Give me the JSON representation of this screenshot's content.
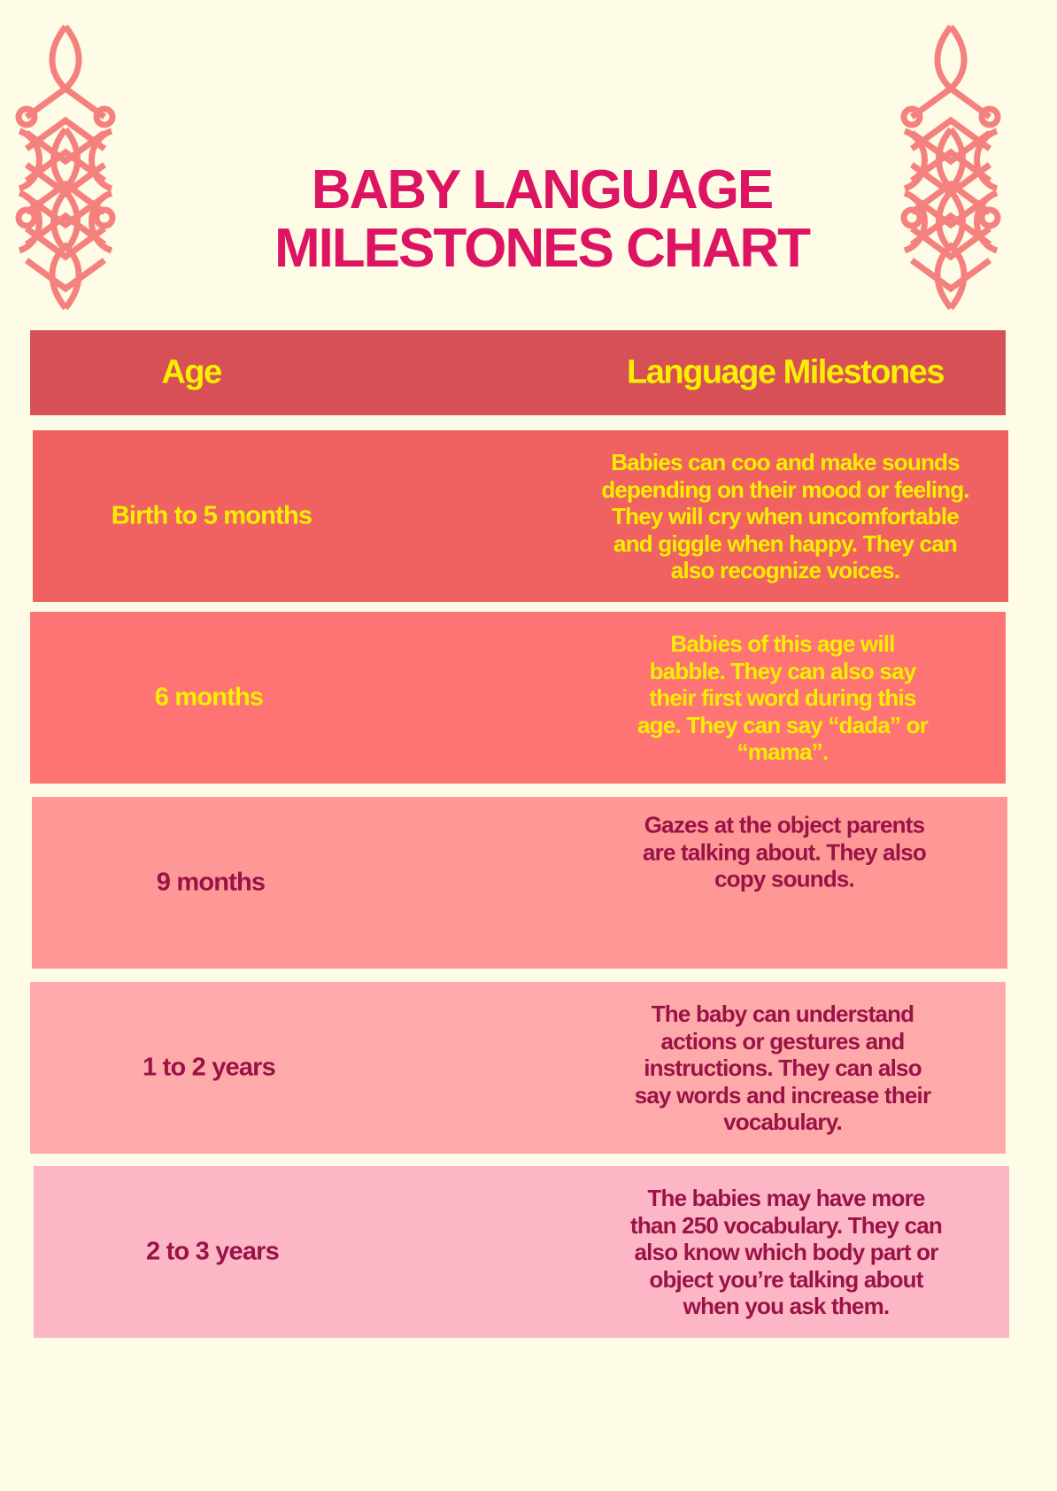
{
  "title": {
    "line1": "BABY LANGUAGE",
    "line2": "MILESTONES CHART"
  },
  "colors": {
    "title": "#dc1462",
    "header_bg": "#d75055",
    "header_text": "#f8f000",
    "ornament": "#f5817e"
  },
  "ornament_icon": "celtic-knot",
  "table": {
    "headers": {
      "age": "Age",
      "milestones": "Language Milestones"
    },
    "rows": [
      {
        "age": "Birth to 5 months",
        "milestone": "Babies can coo and make sounds depending on their mood or feeling. They will cry when uncomfortable and giggle when happy. They can also recognize voices.",
        "bg": "#f06262",
        "text_color": "#f8ef00"
      },
      {
        "age": "6 months",
        "milestone": "Babies of this age will babble. They can also say their first word during this age. They can say “dada” or “mama”.",
        "bg": "#fe7475",
        "text_color": "#f8ef00"
      },
      {
        "age": "9 months",
        "milestone": "Gazes at the object parents are talking about. They also copy sounds.",
        "bg": "#fe9896",
        "text_color": "#9a1347"
      },
      {
        "age": "1 to 2 years",
        "milestone": "The baby can understand actions or gestures and instructions. They can also say words and increase their vocabulary.",
        "bg": "#feaaaa",
        "text_color": "#9a1347"
      },
      {
        "age": "2 to 3 years",
        "milestone": "The babies may have more than 250 vocabulary. They can also know which body part or object you’re talking about when you ask them.",
        "bg": "#fdb6c6",
        "text_color": "#9a1347"
      }
    ]
  }
}
